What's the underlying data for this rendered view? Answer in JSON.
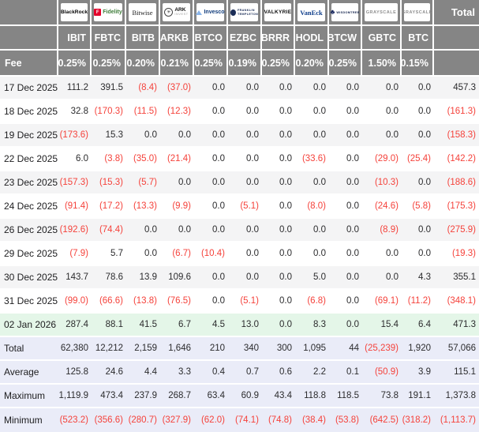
{
  "colors": {
    "header_gray": "#858585",
    "negative_red": "#f5423b",
    "stripe_row": "#f4f4f5",
    "latest_row_green": "#e4f6e8",
    "summary_row_lavender": "#eaecf8"
  },
  "chart_data": {
    "type": "table",
    "total_label": "Total",
    "fee_label": "Fee",
    "providers": [
      {
        "name": "BlackRock",
        "logo": "blackrock",
        "logo_text": [
          "BlackRock"
        ],
        "ticker": "IBIT",
        "fee": "0.25%"
      },
      {
        "name": "Fidelity",
        "logo": "fidelity",
        "logo_text": [
          "F",
          "Fidelity"
        ],
        "ticker": "FBTC",
        "fee": "0.25%"
      },
      {
        "name": "Bitwise",
        "logo": "bitwise",
        "logo_text": [
          "Bitwise"
        ],
        "ticker": "BITB",
        "fee": "0.20%"
      },
      {
        "name": "ARK Invest",
        "logo": "ark",
        "logo_text": [
          "ARK",
          "INVEST"
        ],
        "ticker": "ARKB",
        "fee": "0.21%"
      },
      {
        "name": "Invesco",
        "logo": "invesco",
        "logo_text": [
          "Invesco"
        ],
        "ticker": "BTCO",
        "fee": "0.25%"
      },
      {
        "name": "Franklin Templeton",
        "logo": "franklin",
        "logo_text": [
          "FRANKLIN",
          "TEMPLETON"
        ],
        "ticker": "EZBC",
        "fee": "0.19%"
      },
      {
        "name": "Valkyrie",
        "logo": "valkyrie",
        "logo_text": [
          "VALKYRIE"
        ],
        "ticker": "BRRR",
        "fee": "0.25%"
      },
      {
        "name": "VanEck",
        "logo": "vaneck",
        "logo_text": [
          "VanEck"
        ],
        "ticker": "HODL",
        "fee": "0.20%"
      },
      {
        "name": "WisdomTree",
        "logo": "wisdomtree",
        "logo_text": [
          "WISDOMTREE"
        ],
        "ticker": "BTCW",
        "fee": "0.25%"
      },
      {
        "name": "Grayscale",
        "logo": "grayscale",
        "logo_text": [
          "GRAYSCALE"
        ],
        "ticker": "GBTC",
        "fee": "1.50%"
      },
      {
        "name": "Grayscale",
        "logo": "grayscale",
        "logo_text": [
          "GRAYSCALE"
        ],
        "ticker": "BTC",
        "fee": "0.15%"
      }
    ],
    "rows": [
      {
        "label": "17 Dec 2025",
        "bg": "stripe",
        "values": [
          "111.2",
          "391.5",
          "(8.4)",
          "(37.0)",
          "0.0",
          "0.0",
          "0.0",
          "0.0",
          "0.0",
          "0.0",
          "0.0",
          "457.3"
        ]
      },
      {
        "label": "18 Dec 2025",
        "bg": "white",
        "values": [
          "32.8",
          "(170.3)",
          "(11.5)",
          "(12.3)",
          "0.0",
          "0.0",
          "0.0",
          "0.0",
          "0.0",
          "0.0",
          "0.0",
          "(161.3)"
        ]
      },
      {
        "label": "19 Dec 2025",
        "bg": "stripe",
        "values": [
          "(173.6)",
          "15.3",
          "0.0",
          "0.0",
          "0.0",
          "0.0",
          "0.0",
          "0.0",
          "0.0",
          "0.0",
          "0.0",
          "(158.3)"
        ]
      },
      {
        "label": "22 Dec 2025",
        "bg": "white",
        "values": [
          "6.0",
          "(3.8)",
          "(35.0)",
          "(21.4)",
          "0.0",
          "0.0",
          "0.0",
          "(33.6)",
          "0.0",
          "(29.0)",
          "(25.4)",
          "(142.2)"
        ]
      },
      {
        "label": "23 Dec 2025",
        "bg": "stripe",
        "values": [
          "(157.3)",
          "(15.3)",
          "(5.7)",
          "0.0",
          "0.0",
          "0.0",
          "0.0",
          "0.0",
          "0.0",
          "(10.3)",
          "0.0",
          "(188.6)"
        ]
      },
      {
        "label": "24 Dec 2025",
        "bg": "white",
        "values": [
          "(91.4)",
          "(17.2)",
          "(13.3)",
          "(9.9)",
          "0.0",
          "(5.1)",
          "0.0",
          "(8.0)",
          "0.0",
          "(24.6)",
          "(5.8)",
          "(175.3)"
        ]
      },
      {
        "label": "26 Dec 2025",
        "bg": "stripe",
        "values": [
          "(192.6)",
          "(74.4)",
          "0.0",
          "0.0",
          "0.0",
          "0.0",
          "0.0",
          "0.0",
          "0.0",
          "(8.9)",
          "0.0",
          "(275.9)"
        ]
      },
      {
        "label": "29 Dec 2025",
        "bg": "white",
        "values": [
          "(7.9)",
          "5.7",
          "0.0",
          "(6.7)",
          "(10.4)",
          "0.0",
          "0.0",
          "0.0",
          "0.0",
          "0.0",
          "0.0",
          "(19.3)"
        ]
      },
      {
        "label": "30 Dec 2025",
        "bg": "stripe",
        "values": [
          "143.7",
          "78.6",
          "13.9",
          "109.6",
          "0.0",
          "0.0",
          "0.0",
          "5.0",
          "0.0",
          "0.0",
          "4.3",
          "355.1"
        ]
      },
      {
        "label": "31 Dec 2025",
        "bg": "white",
        "values": [
          "(99.0)",
          "(66.6)",
          "(13.8)",
          "(76.5)",
          "0.0",
          "(5.1)",
          "0.0",
          "(6.8)",
          "0.0",
          "(69.1)",
          "(11.2)",
          "(348.1)"
        ]
      },
      {
        "label": "02 Jan 2026",
        "bg": "green",
        "values": [
          "287.4",
          "88.1",
          "41.5",
          "6.7",
          "4.5",
          "13.0",
          "0.0",
          "8.3",
          "0.0",
          "15.4",
          "6.4",
          "471.3"
        ]
      }
    ],
    "summary_rows": [
      {
        "label": "Total",
        "values": [
          "62,380",
          "12,212",
          "2,159",
          "1,646",
          "210",
          "340",
          "300",
          "1,095",
          "44",
          "(25,239)",
          "1,920",
          "57,066"
        ]
      },
      {
        "label": "Average",
        "values": [
          "125.8",
          "24.6",
          "4.4",
          "3.3",
          "0.4",
          "0.7",
          "0.6",
          "2.2",
          "0.1",
          "(50.9)",
          "3.9",
          "115.1"
        ]
      },
      {
        "label": "Maximum",
        "values": [
          "1,119.9",
          "473.4",
          "237.9",
          "268.7",
          "63.4",
          "60.9",
          "43.4",
          "118.8",
          "118.5",
          "73.8",
          "191.1",
          "1,373.8"
        ]
      },
      {
        "label": "Minimum",
        "values": [
          "(523.2)",
          "(356.6)",
          "(280.7)",
          "(327.9)",
          "(62.0)",
          "(74.1)",
          "(74.8)",
          "(38.4)",
          "(53.8)",
          "(642.5)",
          "(318.2)",
          "(1,113.7)"
        ]
      }
    ]
  }
}
